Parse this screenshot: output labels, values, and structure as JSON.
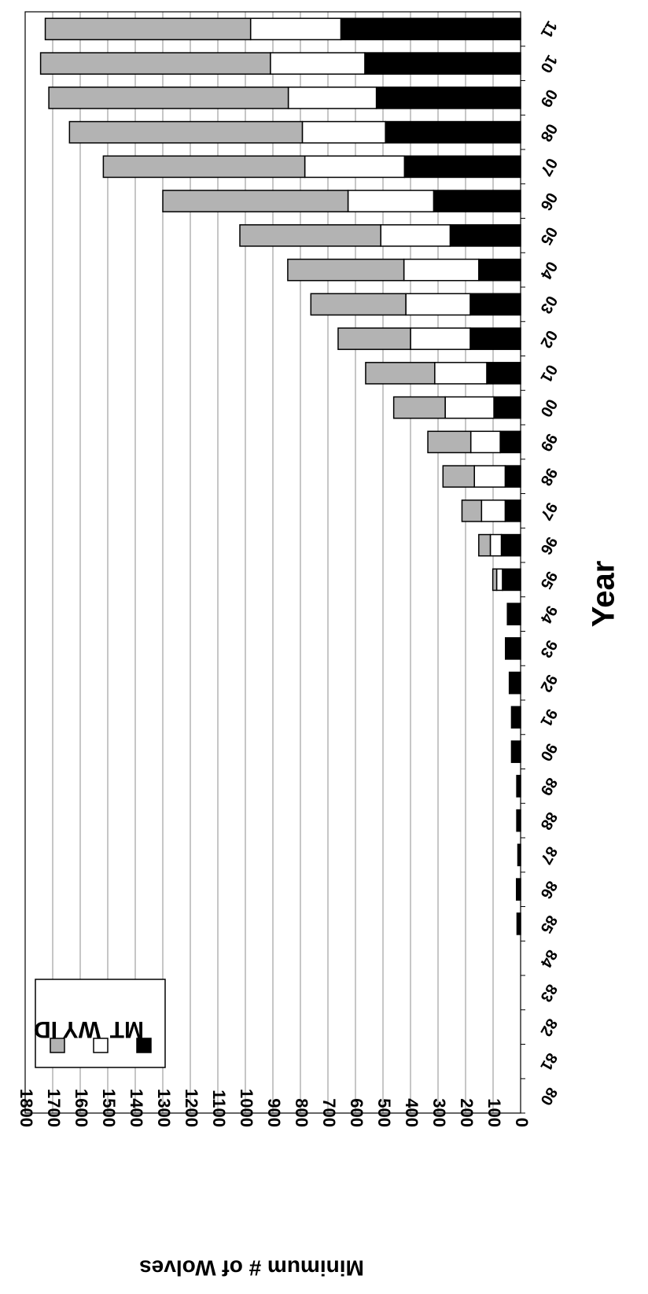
{
  "chart_data": {
    "type": "bar",
    "orientation": "horizontal",
    "stacked": true,
    "title": "",
    "xlabel": "Year",
    "ylabel": "Minimum # of Wolves",
    "ylim": [
      0,
      1800
    ],
    "ytick_step": 100,
    "grid": true,
    "legend_position": "bottom-left",
    "categories": [
      "80",
      "81",
      "82",
      "83",
      "84",
      "85",
      "86",
      "87",
      "88",
      "89",
      "90",
      "91",
      "92",
      "93",
      "94",
      "95",
      "96",
      "97",
      "98",
      "99",
      "00",
      "01",
      "02",
      "03",
      "04",
      "05",
      "06",
      "07",
      "08",
      "09",
      "10",
      "11"
    ],
    "series": [
      {
        "name": "MT",
        "color": "#000000",
        "values": [
          0,
          0,
          0,
          0,
          0,
          13,
          15,
          10,
          14,
          14,
          33,
          33,
          41,
          55,
          48,
          66,
          70,
          56,
          56,
          74,
          97,
          123,
          183,
          183,
          152,
          256,
          316,
          422,
          491,
          524,
          566,
          653
        ]
      },
      {
        "name": "WY",
        "color": "#ffffff",
        "values": [
          0,
          0,
          0,
          0,
          0,
          0,
          0,
          0,
          0,
          0,
          0,
          0,
          0,
          0,
          0,
          21,
          40,
          86,
          112,
          107,
          177,
          189,
          217,
          234,
          272,
          252,
          311,
          362,
          302,
          320,
          343,
          328
        ]
      },
      {
        "name": "ID",
        "color": "#b3b3b3",
        "values": [
          0,
          0,
          0,
          0,
          0,
          0,
          0,
          0,
          0,
          0,
          0,
          0,
          0,
          0,
          0,
          14,
          42,
          71,
          114,
          156,
          187,
          251,
          263,
          345,
          422,
          512,
          673,
          732,
          846,
          870,
          835,
          746
        ]
      }
    ]
  }
}
